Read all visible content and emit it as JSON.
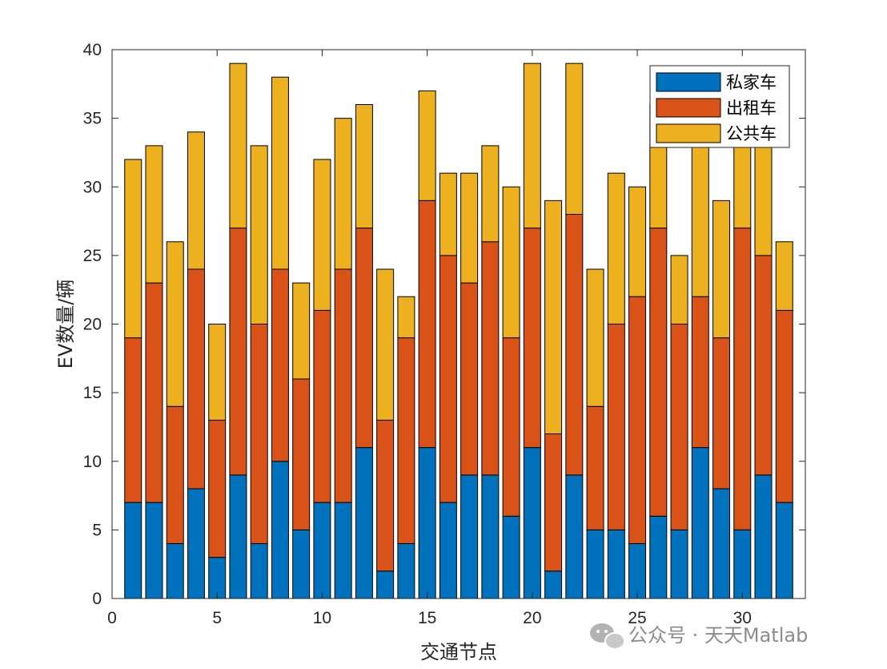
{
  "watermark": {
    "text": "公众号 · 天天Matlab",
    "icon": "wechat-icon"
  },
  "chart_data": {
    "type": "bar",
    "stacked": true,
    "xlabel": "交通节点",
    "ylabel": "EV数量/辆",
    "xlim": [
      0,
      33
    ],
    "ylim": [
      0,
      40
    ],
    "xticks": [
      0,
      5,
      10,
      15,
      20,
      25,
      30
    ],
    "yticks": [
      0,
      5,
      10,
      15,
      20,
      25,
      30,
      35,
      40
    ],
    "grid": false,
    "legend_position": "top-right",
    "x": [
      1,
      2,
      3,
      4,
      5,
      6,
      7,
      8,
      9,
      10,
      11,
      12,
      13,
      14,
      15,
      16,
      17,
      18,
      19,
      20,
      21,
      22,
      23,
      24,
      25,
      26,
      27,
      28,
      29,
      30,
      31,
      32
    ],
    "series": [
      {
        "name": "私家车",
        "color": "#0072BD",
        "values": [
          7,
          7,
          4,
          8,
          3,
          9,
          4,
          10,
          5,
          7,
          7,
          11,
          2,
          4,
          11,
          7,
          9,
          9,
          6,
          11,
          2,
          9,
          5,
          5,
          4,
          6,
          5,
          11,
          8,
          5,
          9,
          7
        ]
      },
      {
        "name": "出租车",
        "color": "#D95319",
        "values": [
          12,
          16,
          10,
          16,
          10,
          18,
          16,
          14,
          11,
          14,
          17,
          16,
          11,
          15,
          18,
          18,
          14,
          17,
          13,
          16,
          10,
          19,
          9,
          15,
          18,
          21,
          15,
          11,
          11,
          22,
          16,
          14
        ]
      },
      {
        "name": "公共车",
        "color": "#EDB120",
        "values": [
          13,
          10,
          12,
          10,
          7,
          12,
          13,
          14,
          7,
          11,
          11,
          9,
          11,
          3,
          8,
          6,
          8,
          7,
          11,
          12,
          17,
          11,
          10,
          11,
          8,
          9,
          5,
          11,
          10,
          6,
          8,
          5
        ]
      }
    ]
  }
}
